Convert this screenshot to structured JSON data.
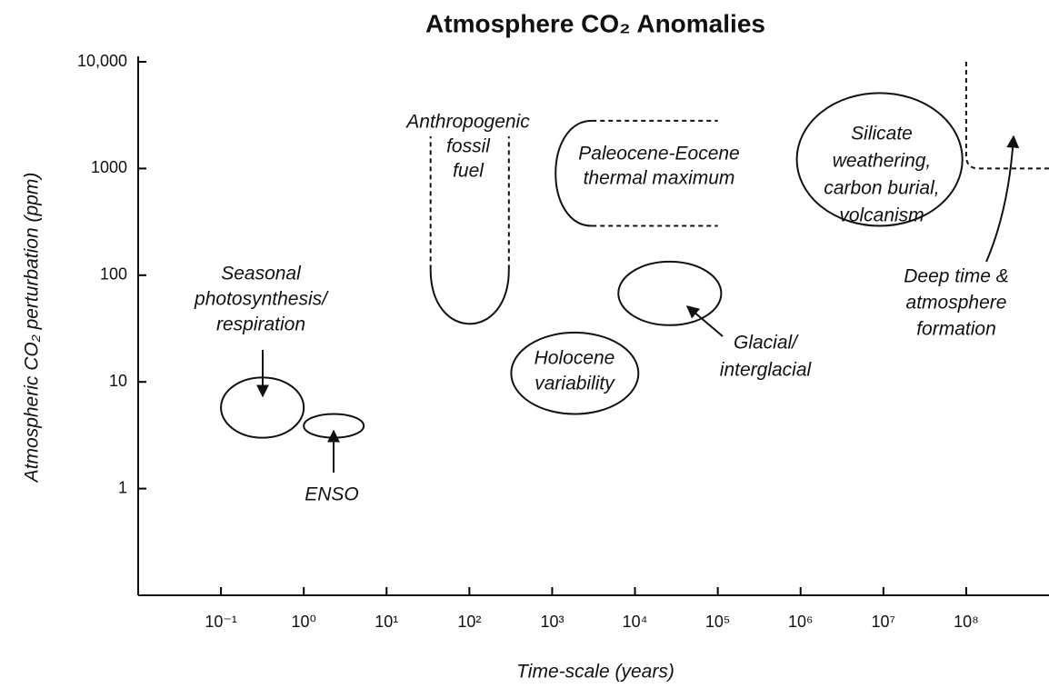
{
  "chart_data": {
    "type": "region",
    "title": "Atmosphere CO₂ Anomalies",
    "x_label": "Time-scale (years)",
    "y_label": "Atmospheric CO₂ perturbation (ppm)",
    "log_x": true,
    "log_y": true,
    "xlim": [
      0.01,
      1000000000
    ],
    "ylim": [
      0.1,
      10000
    ],
    "xticks": [
      {
        "value": 0.1,
        "label": "10⁻¹"
      },
      {
        "value": 1,
        "label": "10⁰"
      },
      {
        "value": 10,
        "label": "10¹"
      },
      {
        "value": 100,
        "label": "10²"
      },
      {
        "value": 1000,
        "label": "10³"
      },
      {
        "value": 10000,
        "label": "10⁴"
      },
      {
        "value": 100000,
        "label": "10⁵"
      },
      {
        "value": 1000000,
        "label": "10⁶"
      },
      {
        "value": 10000000,
        "label": "10⁷"
      },
      {
        "value": 100000000,
        "label": "10⁸"
      }
    ],
    "yticks": [
      1,
      10,
      100,
      1000,
      {
        "value": 10000,
        "label": "10,000"
      }
    ],
    "color": "#000000",
    "regions": [
      {
        "label": [
          "Seasonal",
          "photosynthesis/",
          "respiration"
        ],
        "shape": "ellipse",
        "x": [
          0.1,
          1
        ],
        "y": [
          3,
          11
        ]
      },
      {
        "label": [
          "ENSO"
        ],
        "shape": "ellipse",
        "x": [
          1,
          5.3
        ],
        "y": [
          3,
          5
        ]
      },
      {
        "label": [
          "Anthropogenic",
          "fossil",
          "fuel"
        ],
        "shape": "u",
        "x": [
          34,
          300
        ],
        "y": [
          35,
          2000
        ]
      },
      {
        "label": [
          "Paleocene-Eocene",
          "thermal maximum"
        ],
        "shape": "c",
        "x": [
          1100,
          100000
        ],
        "y": [
          290,
          2800
        ]
      },
      {
        "label": [
          "Holocene",
          "variability"
        ],
        "shape": "ellipse",
        "x": [
          320,
          11000
        ],
        "y": [
          5,
          29
        ]
      },
      {
        "label": [
          "Glacial/",
          "interglacial"
        ],
        "shape": "ellipse",
        "x": [
          6300,
          110000
        ],
        "y": [
          34,
          134
        ]
      },
      {
        "label": [
          "Silicate",
          "weathering,",
          "carbon burial,",
          "volcanism"
        ],
        "shape": "ellipse",
        "x": [
          900000,
          90000000
        ],
        "y": [
          290,
          5100
        ]
      },
      {
        "label": [
          "Deep time &",
          "atmosphere",
          "formation"
        ],
        "shape": "corner",
        "x": [
          100000000,
          1000000000
        ],
        "y": [
          1000,
          10000
        ]
      }
    ]
  }
}
